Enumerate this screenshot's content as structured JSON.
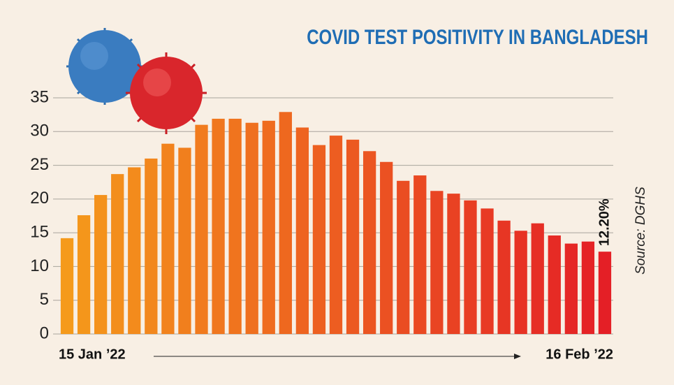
{
  "chart_data": {
    "type": "bar",
    "title": "COVID TEST POSITIVITY IN BANGLADESH",
    "source": "Source: DGHS",
    "categories": [
      "15 Jan ’22",
      null,
      null,
      null,
      null,
      null,
      null,
      null,
      null,
      null,
      null,
      null,
      null,
      null,
      null,
      null,
      null,
      null,
      null,
      null,
      null,
      null,
      null,
      null,
      null,
      null,
      null,
      null,
      null,
      null,
      null,
      null,
      "16 Feb ’22"
    ],
    "values": [
      14.2,
      17.6,
      20.6,
      23.7,
      24.7,
      26.0,
      28.2,
      27.6,
      31.0,
      31.9,
      31.9,
      31.3,
      31.6,
      32.9,
      30.6,
      28.0,
      29.4,
      28.8,
      27.1,
      25.5,
      22.7,
      23.5,
      21.2,
      20.8,
      19.8,
      18.6,
      16.8,
      15.3,
      16.4,
      14.6,
      13.4,
      13.7,
      12.2
    ],
    "value_labels": [
      null,
      null,
      null,
      null,
      null,
      null,
      null,
      null,
      null,
      null,
      null,
      null,
      null,
      null,
      null,
      null,
      null,
      null,
      null,
      null,
      null,
      null,
      null,
      null,
      null,
      null,
      null,
      null,
      null,
      null,
      null,
      null,
      "12.20%"
    ],
    "colors": [
      "#f59a1b",
      "#e41f26"
    ],
    "ylim": [
      0,
      35
    ],
    "yticks": [
      0,
      5,
      10,
      15,
      20,
      25,
      30,
      35
    ],
    "grid": true
  }
}
